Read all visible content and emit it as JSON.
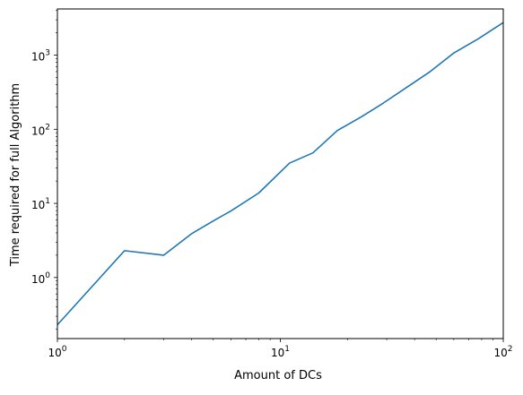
{
  "chart_data": {
    "type": "line",
    "title": "",
    "xlabel": "Amount of DCs",
    "ylabel": "Time required for full Algorithm",
    "xscale": "log",
    "yscale": "log",
    "xlim": [
      1,
      100
    ],
    "ylim": [
      0.15,
      4200
    ],
    "grid": false,
    "x_ticks": [
      {
        "value": 1,
        "base": "10",
        "exp": "0"
      },
      {
        "value": 10,
        "base": "10",
        "exp": "1"
      },
      {
        "value": 100,
        "base": "10",
        "exp": "2"
      }
    ],
    "y_ticks": [
      {
        "value": 1,
        "base": "10",
        "exp": "0"
      },
      {
        "value": 10,
        "base": "10",
        "exp": "1"
      },
      {
        "value": 100,
        "base": "10",
        "exp": "2"
      },
      {
        "value": 1000,
        "base": "10",
        "exp": "3"
      }
    ],
    "series": [
      {
        "color": "#1f77b4",
        "x": [
          1,
          2,
          3,
          4,
          5,
          6,
          8,
          11,
          14,
          18,
          23,
          29,
          37,
          47,
          60,
          77,
          100
        ],
        "y": [
          0.23,
          2.3,
          2.0,
          3.9,
          5.8,
          7.9,
          13.8,
          35,
          48,
          96,
          146,
          226,
          370,
          600,
          1070,
          1650,
          2750
        ]
      }
    ]
  }
}
